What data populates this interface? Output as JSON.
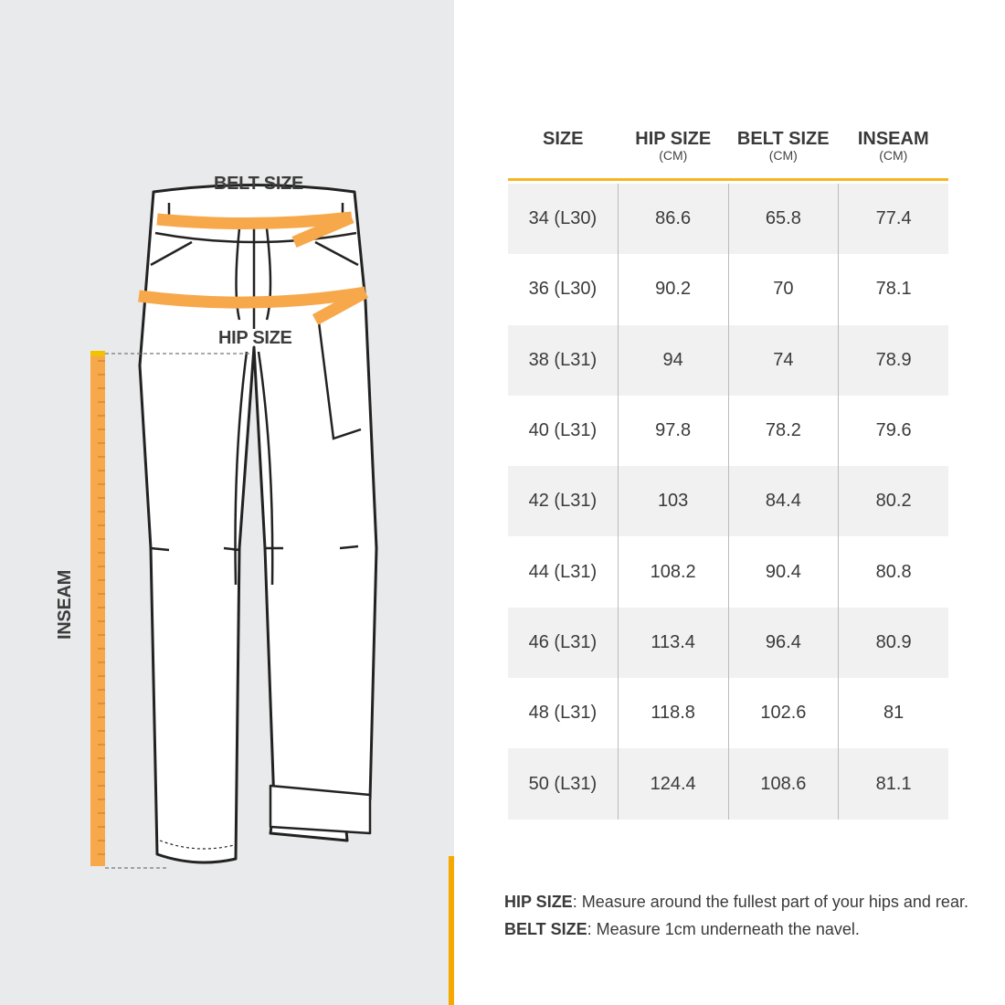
{
  "illustration": {
    "belt_label": "BELT SIZE",
    "hip_label": "HIP SIZE",
    "inseam_label": "INSEAM"
  },
  "colors": {
    "accent": "#f5a800",
    "tape": "#f7a84a",
    "panel": "#e9eaeb",
    "row_alt": "#f1f1f1"
  },
  "table": {
    "headers": [
      {
        "label": "SIZE",
        "unit": ""
      },
      {
        "label": "HIP SIZE",
        "unit": "(CM)"
      },
      {
        "label": "BELT SIZE",
        "unit": "(CM)"
      },
      {
        "label": "INSEAM",
        "unit": "(CM)"
      }
    ],
    "rows": [
      [
        "34 (L30)",
        "86.6",
        "65.8",
        "77.4"
      ],
      [
        "36 (L30)",
        "90.2",
        "70",
        "78.1"
      ],
      [
        "38 (L31)",
        "94",
        "74",
        "78.9"
      ],
      [
        "40 (L31)",
        "97.8",
        "78.2",
        "79.6"
      ],
      [
        "42 (L31)",
        "103",
        "84.4",
        "80.2"
      ],
      [
        "44 (L31)",
        "108.2",
        "90.4",
        "80.8"
      ],
      [
        "46 (L31)",
        "113.4",
        "96.4",
        "80.9"
      ],
      [
        "48 (L31)",
        "118.8",
        "102.6",
        "81"
      ],
      [
        "50 (L31)",
        "124.4",
        "108.6",
        "81.1"
      ]
    ]
  },
  "notes": [
    {
      "term": "HIP SIZE",
      "text": ": Measure around the fullest part of your hips and rear."
    },
    {
      "term": "BELT SIZE",
      "text": ": Measure 1cm underneath the navel."
    }
  ]
}
